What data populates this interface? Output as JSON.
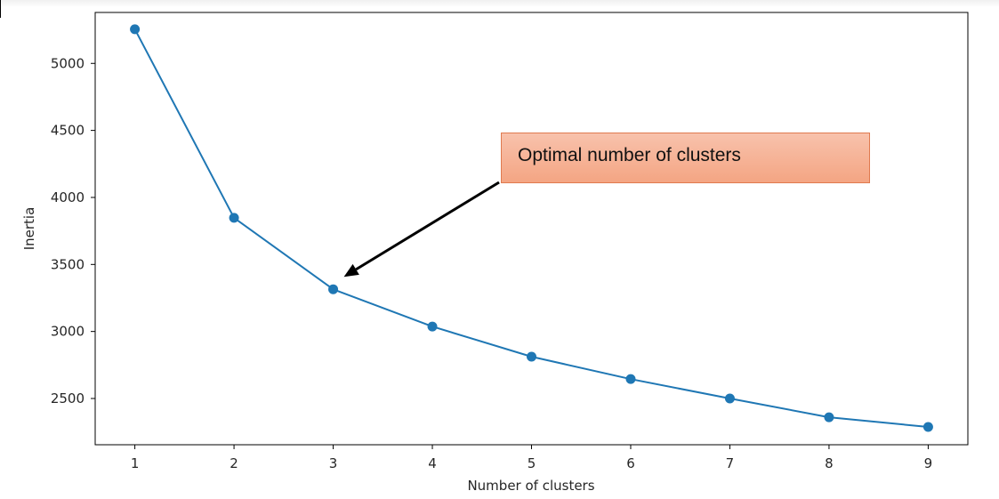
{
  "chart_data": {
    "type": "line",
    "title": "",
    "xlabel": "Number of clusters",
    "ylabel": "Inertia",
    "x": [
      1,
      2,
      3,
      4,
      5,
      6,
      7,
      8,
      9
    ],
    "series": [
      {
        "values": [
          5255,
          3848,
          3315,
          3037,
          2812,
          2645,
          2500,
          2360,
          2288
        ],
        "color": "#1f77b4",
        "marker": "circle"
      }
    ],
    "xticks": [
      1,
      2,
      3,
      4,
      5,
      6,
      7,
      8,
      9
    ],
    "yticks": [
      2500,
      3000,
      3500,
      4000,
      4500,
      5000
    ],
    "xlim": [
      0.6,
      9.4
    ],
    "ylim": [
      2155,
      5380
    ],
    "grid": false,
    "legend": "none",
    "annotations": [
      {
        "text": "Optimal number of clusters",
        "points_to_x": 3,
        "points_to_y": 3315,
        "box_color": "#f4a583",
        "arrow_color": "#000000"
      }
    ]
  }
}
